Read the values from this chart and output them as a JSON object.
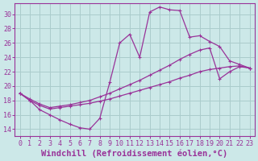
{
  "background_color": "#cce8e8",
  "grid_color": "#aacccc",
  "line_color": "#993399",
  "xlabel": "Windchill (Refroidissement éolien,°C)",
  "xlabel_color": "#993399",
  "ylabel_ticks": [
    14,
    16,
    18,
    20,
    22,
    24,
    26,
    28,
    30
  ],
  "xlim": [
    -0.5,
    23.5
  ],
  "ylim": [
    13.0,
    31.5
  ],
  "xtick_labels": [
    "0",
    "1",
    "2",
    "3",
    "4",
    "5",
    "6",
    "7",
    "8",
    "9",
    "10",
    "11",
    "12",
    "13",
    "14",
    "15",
    "16",
    "17",
    "18",
    "19",
    "20",
    "21",
    "22",
    "23"
  ],
  "curve1_x": [
    0,
    1,
    2,
    3,
    4,
    5,
    6,
    7,
    8,
    9,
    10,
    11,
    12,
    13,
    14,
    15,
    16,
    17,
    18,
    19,
    20,
    21,
    22,
    23
  ],
  "curve1_y": [
    19.0,
    18.0,
    16.7,
    16.0,
    15.3,
    14.7,
    14.2,
    14.0,
    15.5,
    20.5,
    26.0,
    27.2,
    24.0,
    30.3,
    31.0,
    30.6,
    30.5,
    26.8,
    27.0,
    26.2,
    25.5,
    23.5,
    23.0,
    22.5
  ],
  "curve2_x": [
    0,
    1,
    2,
    3,
    4,
    5,
    6,
    7,
    8,
    9,
    10,
    11,
    12,
    13,
    14,
    15,
    16,
    17,
    18,
    19,
    20,
    21,
    22,
    23
  ],
  "curve2_y": [
    19.0,
    18.2,
    17.5,
    17.0,
    17.2,
    17.4,
    17.7,
    18.0,
    18.5,
    19.0,
    19.6,
    20.2,
    20.8,
    21.5,
    22.2,
    22.9,
    23.7,
    24.4,
    25.0,
    25.3,
    21.0,
    22.0,
    22.7,
    22.5
  ],
  "curve3_x": [
    0,
    1,
    2,
    3,
    4,
    5,
    6,
    7,
    8,
    9,
    10,
    11,
    12,
    13,
    14,
    15,
    16,
    17,
    18,
    19,
    20,
    21,
    22,
    23
  ],
  "curve3_y": [
    19.0,
    18.0,
    17.3,
    16.8,
    17.0,
    17.2,
    17.4,
    17.6,
    17.9,
    18.2,
    18.6,
    19.0,
    19.4,
    19.8,
    20.2,
    20.6,
    21.1,
    21.5,
    22.0,
    22.3,
    22.5,
    22.7,
    22.8,
    22.5
  ],
  "tick_color": "#993399",
  "tick_fontsize": 6,
  "xlabel_fontsize": 7.5
}
